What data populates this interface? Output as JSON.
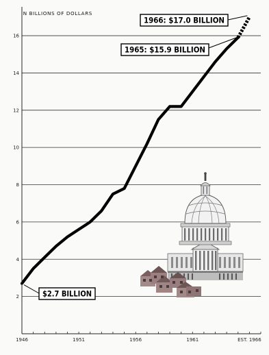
{
  "chart_data": {
    "type": "line",
    "ylabel": "IN BILLIONS OF DOLLARS",
    "ylim": [
      0,
      17.4
    ],
    "xlim": [
      1946,
      1967
    ],
    "yticks": [
      2,
      4,
      6,
      8,
      10,
      12,
      14,
      16
    ],
    "xticks": [
      {
        "value": 1946,
        "label": "1946"
      },
      {
        "value": 1951,
        "label": "1951"
      },
      {
        "value": 1956,
        "label": "1956"
      },
      {
        "value": 1961,
        "label": "1961"
      },
      {
        "value": 1966,
        "label": "EST. 1966"
      }
    ],
    "grid": "horizontal",
    "series": [
      {
        "style": "solid",
        "x": [
          1946,
          1947,
          1948,
          1949,
          1950,
          1951,
          1952,
          1953,
          1954,
          1955,
          1956,
          1957,
          1958,
          1959,
          1960,
          1961,
          1962,
          1963,
          1964,
          1965
        ],
        "values": [
          2.7,
          3.5,
          4.1,
          4.7,
          5.2,
          5.6,
          6.0,
          6.6,
          7.5,
          7.8,
          9.0,
          10.2,
          11.5,
          12.2,
          12.2,
          13.0,
          13.8,
          14.6,
          15.3,
          15.9
        ]
      },
      {
        "style": "dashed",
        "x": [
          1965,
          1966
        ],
        "values": [
          15.9,
          17.0
        ]
      }
    ],
    "annotations": [
      {
        "text": "1966: $17.0 BILLION",
        "x": 1966,
        "y": 17.0
      },
      {
        "text": "1965: $15.9 BILLION",
        "x": 1965,
        "y": 15.9
      },
      {
        "text": "$2.7 BILLION",
        "x": 1946,
        "y": 2.7
      }
    ]
  },
  "illustration": {
    "capitol": "capitol-building-icon",
    "houses": "houses-icon"
  },
  "colors": {
    "line": "#000000",
    "grid": "#333333",
    "background": "#fafaf8"
  }
}
